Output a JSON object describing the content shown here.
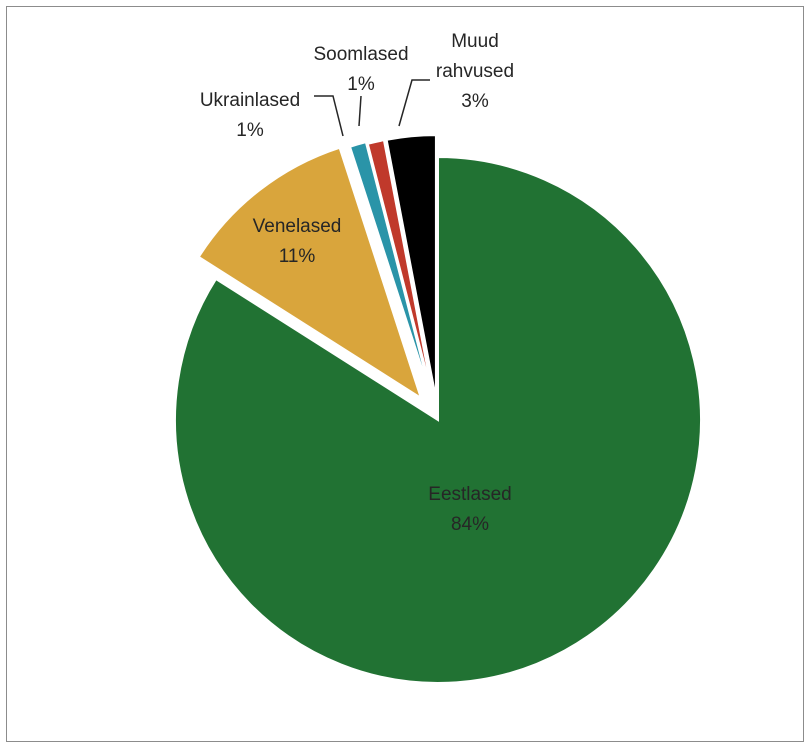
{
  "chart_data": {
    "type": "pie",
    "title": "",
    "start_angle_deg": 0,
    "direction": "clockwise",
    "slices": [
      {
        "label": "Eestlased",
        "value": 84,
        "percent_label": "84%",
        "color": "#217233",
        "exploded": false
      },
      {
        "label": "Venelased",
        "value": 11,
        "percent_label": "11%",
        "color": "#d9a53c",
        "exploded": true
      },
      {
        "label": "Ukrainlased",
        "value": 1,
        "percent_label": "1%",
        "color": "#2a94a8",
        "exploded": true
      },
      {
        "label": "Soomlased",
        "value": 1,
        "percent_label": "1%",
        "color": "#c0392b",
        "exploded": true
      },
      {
        "label": "Muud rahvused",
        "value": 3,
        "percent_label": "3%",
        "color": "#000000",
        "exploded": true
      }
    ]
  }
}
